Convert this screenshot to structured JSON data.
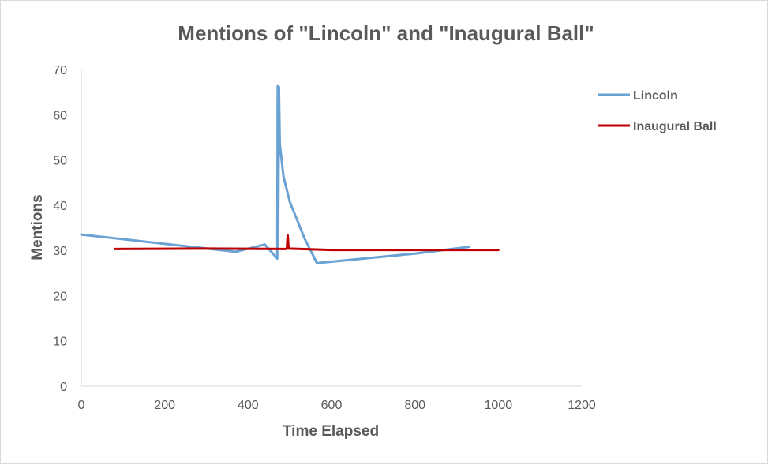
{
  "chart_data": {
    "type": "line",
    "title": "Mentions of \"Lincoln\" and \"Inaugural Ball\"",
    "xlabel": "Time Elapsed",
    "ylabel": "Mentions",
    "xlim": [
      0,
      1200
    ],
    "ylim": [
      0,
      70
    ],
    "xticks": [
      "0",
      "200",
      "400",
      "600",
      "800",
      "1000",
      "1200"
    ],
    "yticks": [
      "0",
      "10",
      "20",
      "30",
      "40",
      "50",
      "60",
      "70"
    ],
    "grid": false,
    "legend_position": "right",
    "series": [
      {
        "name": "Lincoln",
        "color": "#6aa2d3",
        "points": [
          [
            0,
            33.5
          ],
          [
            370,
            29.7
          ],
          [
            440,
            31.3
          ],
          [
            470,
            28.2
          ],
          [
            471,
            66.3
          ],
          [
            472,
            30.8
          ],
          [
            474,
            66.1
          ],
          [
            476,
            53.5
          ],
          [
            485,
            46.3
          ],
          [
            500,
            40.7
          ],
          [
            535,
            32.7
          ],
          [
            565,
            27.2
          ],
          [
            800,
            29.3
          ],
          [
            930,
            30.8
          ]
        ]
      },
      {
        "name": "Inaugural Ball",
        "color": "#c00000",
        "points": [
          [
            80,
            30.3
          ],
          [
            300,
            30.4
          ],
          [
            490,
            30.3
          ],
          [
            493,
            30.4
          ],
          [
            495,
            33.3
          ],
          [
            497,
            30.4
          ],
          [
            600,
            30.1
          ],
          [
            1000,
            30.1
          ]
        ]
      }
    ]
  }
}
